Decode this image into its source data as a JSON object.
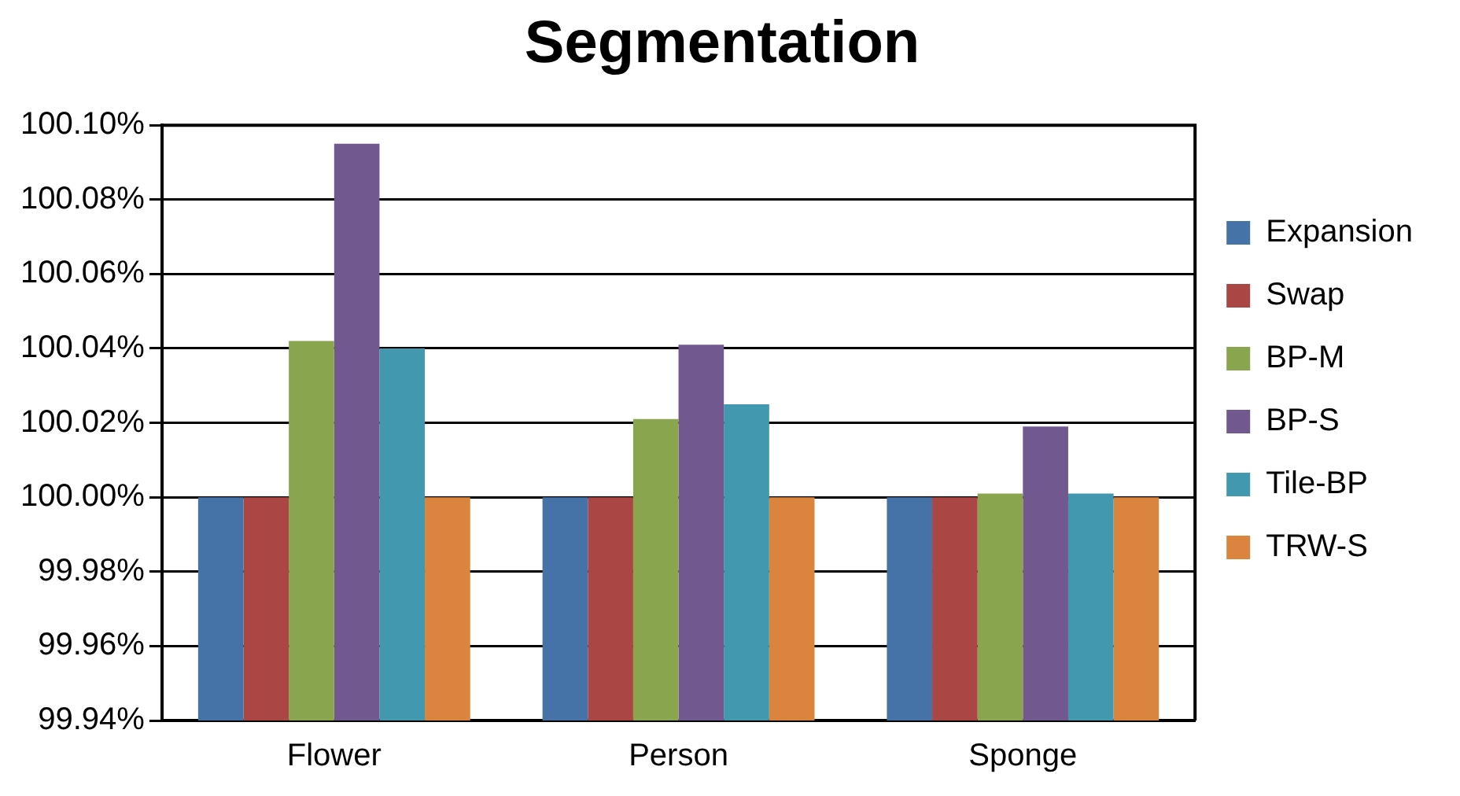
{
  "chart_data": {
    "type": "bar",
    "title": "Segmentation",
    "categories": [
      "Flower",
      "Person",
      "Sponge"
    ],
    "series": [
      {
        "name": "Expansion",
        "color": "#4572a7",
        "values": [
          100.0,
          100.0,
          100.0
        ]
      },
      {
        "name": "Swap",
        "color": "#aa4643",
        "values": [
          100.0,
          100.0,
          100.0
        ]
      },
      {
        "name": "BP-M",
        "color": "#89a54e",
        "values": [
          100.042,
          100.021,
          100.001
        ]
      },
      {
        "name": "BP-S",
        "color": "#71588f",
        "values": [
          100.095,
          100.041,
          100.019
        ]
      },
      {
        "name": "Tile-BP",
        "color": "#4198af",
        "values": [
          100.04,
          100.025,
          100.001
        ]
      },
      {
        "name": "TRW-S",
        "color": "#db843d",
        "values": [
          100.0,
          100.0,
          100.0
        ]
      }
    ],
    "ylim": [
      99.94,
      100.1
    ],
    "yticks": [
      {
        "value": 99.94,
        "label": "99.94%"
      },
      {
        "value": 99.96,
        "label": "99.96%"
      },
      {
        "value": 99.98,
        "label": "99.98%"
      },
      {
        "value": 100.0,
        "label": "100.00%"
      },
      {
        "value": 100.02,
        "label": "100.02%"
      },
      {
        "value": 100.04,
        "label": "100.04%"
      },
      {
        "value": 100.06,
        "label": "100.06%"
      },
      {
        "value": 100.08,
        "label": "100.08%"
      },
      {
        "value": 100.1,
        "label": "100.10%"
      }
    ],
    "grid": "y",
    "legend": "right"
  }
}
